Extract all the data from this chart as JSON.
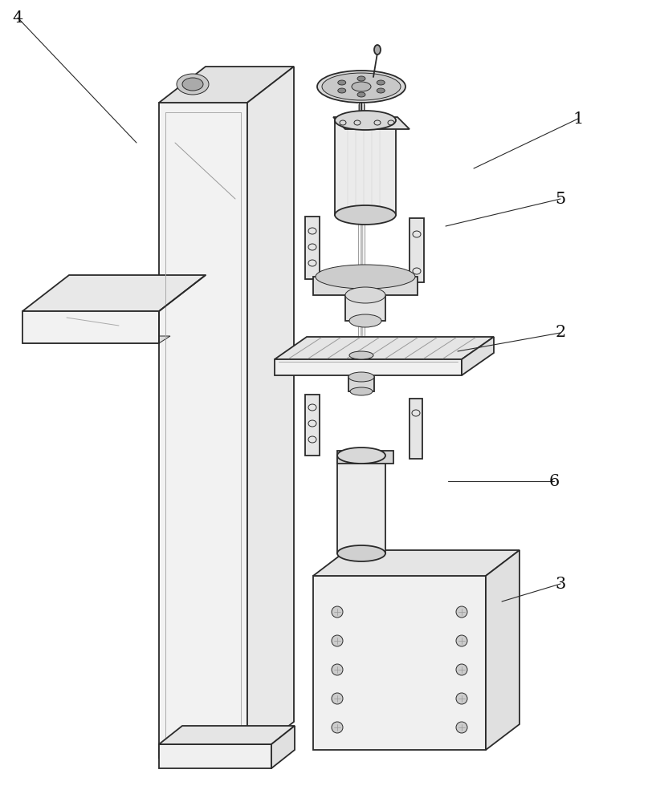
{
  "background_color": "#ffffff",
  "line_color": "#2a2a2a",
  "label_color": "#111111",
  "figsize": [
    8.17,
    10.0
  ],
  "dpi": 100,
  "annotations": [
    [
      "1",
      720,
      148,
      590,
      210
    ],
    [
      "2",
      698,
      415,
      570,
      438
    ],
    [
      "3",
      698,
      728,
      625,
      750
    ],
    [
      "4",
      22,
      22,
      170,
      178
    ],
    [
      "5",
      698,
      248,
      555,
      282
    ],
    [
      "6",
      690,
      600,
      558,
      600
    ]
  ]
}
